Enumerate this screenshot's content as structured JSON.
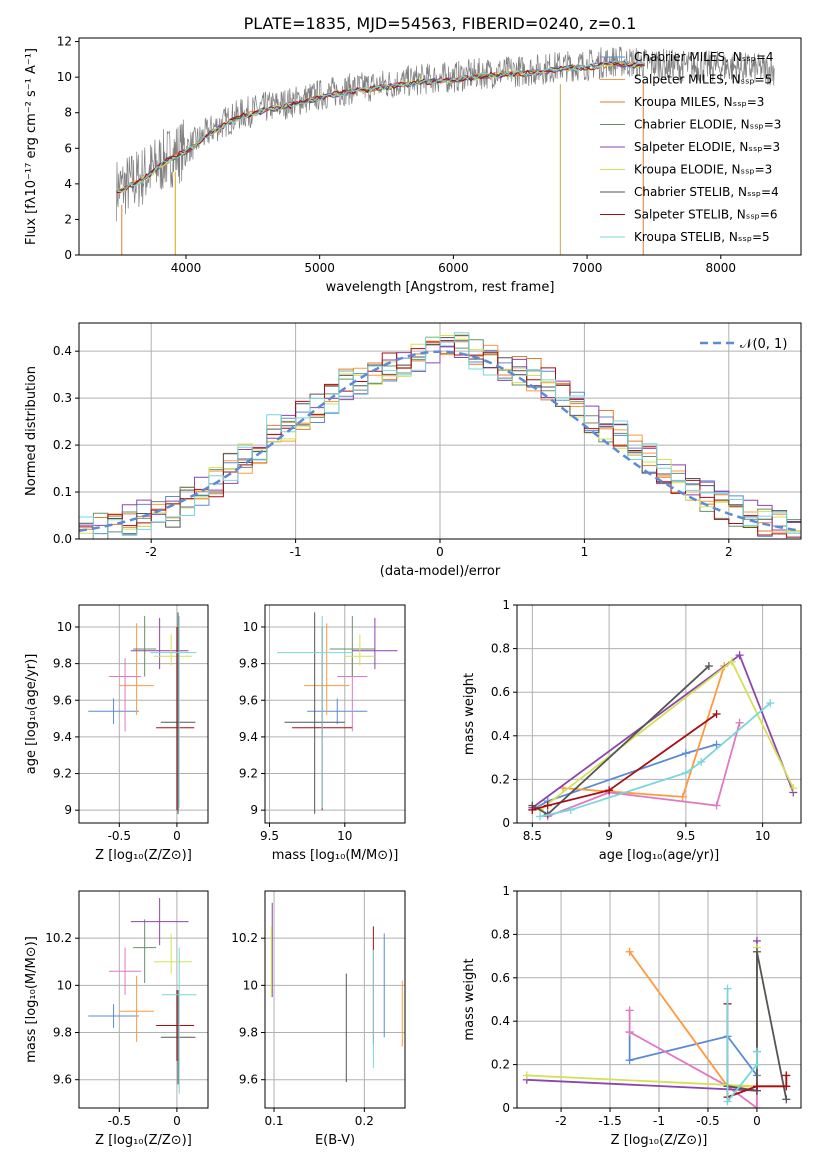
{
  "figure": {
    "title": "PLATE=1835, MJD=54563, FIBERID=0240, z=0.1"
  },
  "colors": {
    "run_colors": [
      "#5b8bd6",
      "#ff9a3c",
      "#e07e2c",
      "#6b8f6b",
      "#8e44ad",
      "#d4e157",
      "#555555",
      "#a50f15",
      "#78d6dc"
    ],
    "observed": "#7f7f7f",
    "pink": "#e377c2",
    "norm_curve": "#5b8bd6",
    "grid": "#b0b0b0"
  },
  "chart_data": [
    {
      "id": "spectrum",
      "type": "line",
      "title": "PLATE=1835, MJD=54563, FIBERID=0240, z=0.1",
      "xlabel": "wavelength [Angstrom, rest frame]",
      "ylabel": "Flux [fλ10⁻¹⁷ erg cm⁻² s⁻¹ A⁻¹]",
      "xlim": [
        3200,
        8600
      ],
      "ylim": [
        0,
        12.2
      ],
      "xticks": [
        4000,
        5000,
        6000,
        7000,
        8000
      ],
      "yticks": [
        0,
        2,
        4,
        6,
        8,
        10,
        12
      ],
      "grid": false,
      "legend_position": "upper right",
      "legend": [
        "Chabrier MILES, Nₛₛₚ=4",
        "Salpeter MILES, Nₛₛₚ=5",
        "Kroupa MILES, Nₛₛₚ=3",
        "Chabrier ELODIE, Nₛₛₚ=3",
        "Salpeter ELODIE, Nₛₛₚ=3",
        "Kroupa ELODIE, Nₛₛₚ=3",
        "Chabrier STELIB, Nₛₛₚ=4",
        "Salpeter STELIB, Nₛₛₚ=6",
        "Kroupa STELIB, Nₛₛₚ=5"
      ],
      "continuum": {
        "x": [
          3480,
          3550,
          3650,
          3750,
          3850,
          3950,
          4050,
          4200,
          4400,
          4600,
          4800,
          5000,
          5200,
          5400,
          5600,
          5800,
          6000,
          6200,
          6400,
          6600,
          6800,
          7000,
          7200,
          7400,
          7600,
          7800,
          8000,
          8200,
          8400
        ],
        "y": [
          3.7,
          3.9,
          4.3,
          4.8,
          5.4,
          5.8,
          6.2,
          7.1,
          7.9,
          8.3,
          8.6,
          9.0,
          9.3,
          9.5,
          9.7,
          9.9,
          10.0,
          10.2,
          10.3,
          10.4,
          10.6,
          10.7,
          10.9,
          10.8,
          10.7,
          10.6,
          10.6,
          10.5,
          10.4
        ]
      }
    },
    {
      "id": "residuals",
      "type": "histogram",
      "xlabel": "(data-model)/error",
      "ylabel": "Normed distribution",
      "xlim": [
        -2.5,
        2.5
      ],
      "ylim": [
        0,
        0.46
      ],
      "xticks": [
        -2,
        -1,
        0,
        1,
        2
      ],
      "yticks": [
        0.0,
        0.1,
        0.2,
        0.3,
        0.4
      ],
      "grid": true,
      "legend_position": "upper right",
      "legend": [
        "𝒩(0, 1)"
      ],
      "bins": [
        -2.5,
        -2.4,
        -2.3,
        -2.2,
        -2.1,
        -2.0,
        -1.9,
        -1.8,
        -1.7,
        -1.6,
        -1.5,
        -1.4,
        -1.3,
        -1.2,
        -1.1,
        -1.0,
        -0.9,
        -0.8,
        -0.7,
        -0.6,
        -0.5,
        -0.4,
        -0.3,
        -0.2,
        -0.1,
        0.0,
        0.1,
        0.2,
        0.3,
        0.4,
        0.5,
        0.6,
        0.7,
        0.8,
        0.9,
        1.0,
        1.1,
        1.2,
        1.3,
        1.4,
        1.5,
        1.6,
        1.7,
        1.8,
        1.9,
        2.0,
        2.1,
        2.2,
        2.3,
        2.4,
        2.5
      ],
      "base_heights": [
        0.02,
        0.02,
        0.03,
        0.04,
        0.05,
        0.06,
        0.06,
        0.08,
        0.1,
        0.12,
        0.15,
        0.17,
        0.19,
        0.24,
        0.23,
        0.26,
        0.28,
        0.3,
        0.33,
        0.34,
        0.36,
        0.37,
        0.38,
        0.39,
        0.4,
        0.4,
        0.41,
        0.39,
        0.38,
        0.37,
        0.36,
        0.35,
        0.33,
        0.31,
        0.28,
        0.26,
        0.24,
        0.22,
        0.19,
        0.17,
        0.14,
        0.13,
        0.11,
        0.09,
        0.07,
        0.06,
        0.05,
        0.04,
        0.03,
        0.02
      ]
    },
    {
      "id": "age_vs_Z",
      "type": "scatter",
      "xlabel": "Z [log₁₀(Z/Z⊙)]",
      "ylabel": "age  [log₁₀(age/yr)]",
      "xlim": [
        -0.85,
        0.27
      ],
      "ylim": [
        8.93,
        10.12
      ],
      "xticks": [
        -0.5,
        0.0
      ],
      "yticks": [
        9.0,
        9.2,
        9.4,
        9.6,
        9.8,
        10.0
      ],
      "grid": true,
      "points": [
        {
          "x": -0.55,
          "y": 9.54,
          "xerr": [
            0.22,
            0.22
          ],
          "yerr": [
            0.07,
            0.07
          ],
          "c": 0
        },
        {
          "x": -0.35,
          "y": 9.68,
          "xerr": [
            0.15,
            0.15
          ],
          "yerr": [
            0.16,
            0.34
          ],
          "c": 1
        },
        {
          "x": -0.45,
          "y": 9.73,
          "xerr": [
            0.14,
            0.14
          ],
          "yerr": [
            0.3,
            0.1
          ],
          "c": 9
        },
        {
          "x": -0.28,
          "y": 9.88,
          "xerr": [
            0.1,
            0.1
          ],
          "yerr": [
            0.15,
            0.18
          ],
          "c": 3
        },
        {
          "x": -0.15,
          "y": 9.87,
          "xerr": [
            0.25,
            0.25
          ],
          "yerr": [
            0.1,
            0.18
          ],
          "c": 4
        },
        {
          "x": -0.05,
          "y": 9.84,
          "xerr": [
            0.15,
            0.18
          ],
          "yerr": [
            0.05,
            0.12
          ],
          "c": 5
        },
        {
          "x": 0.01,
          "y": 9.48,
          "xerr": [
            0.15,
            0.15
          ],
          "yerr": [
            0.5,
            0.6
          ],
          "c": 6
        },
        {
          "x": 0.0,
          "y": 9.45,
          "xerr": [
            0.18,
            0.15
          ],
          "yerr": [
            0.45,
            0.55
          ],
          "c": 7
        },
        {
          "x": 0.02,
          "y": 9.86,
          "xerr": [
            0.25,
            0.15
          ],
          "yerr": [
            0.85,
            0.2
          ],
          "c": 8
        }
      ]
    },
    {
      "id": "age_vs_mass",
      "type": "scatter",
      "xlabel": "mass [log₁₀(M/M⊙)]",
      "ylabel": "",
      "xlim": [
        9.47,
        10.4
      ],
      "ylim": [
        8.93,
        10.12
      ],
      "xticks": [
        9.5,
        10.0
      ],
      "yticks": [
        9.0,
        9.2,
        9.4,
        9.6,
        9.8,
        10.0
      ],
      "grid": true,
      "points": [
        {
          "x": 9.95,
          "y": 9.54,
          "xerr": [
            0.2,
            0.2
          ],
          "yerr": [
            0.07,
            0.07
          ],
          "c": 0
        },
        {
          "x": 9.88,
          "y": 9.68,
          "xerr": [
            0.15,
            0.15
          ],
          "yerr": [
            0.16,
            0.34
          ],
          "c": 1
        },
        {
          "x": 10.05,
          "y": 9.73,
          "xerr": [
            0.1,
            0.1
          ],
          "yerr": [
            0.3,
            0.1
          ],
          "c": 9
        },
        {
          "x": 10.05,
          "y": 9.88,
          "xerr": [
            0.15,
            0.15
          ],
          "yerr": [
            0.15,
            0.18
          ],
          "c": 3
        },
        {
          "x": 10.2,
          "y": 9.87,
          "xerr": [
            0.15,
            0.15
          ],
          "yerr": [
            0.1,
            0.18
          ],
          "c": 4
        },
        {
          "x": 10.1,
          "y": 9.84,
          "xerr": [
            0.1,
            0.1
          ],
          "yerr": [
            0.05,
            0.12
          ],
          "c": 5
        },
        {
          "x": 9.8,
          "y": 9.48,
          "xerr": [
            0.2,
            0.2
          ],
          "yerr": [
            0.5,
            0.6
          ],
          "c": 6
        },
        {
          "x": 9.85,
          "y": 9.45,
          "xerr": [
            0.2,
            0.2
          ],
          "yerr": [
            0.45,
            0.55
          ],
          "c": 7
        },
        {
          "x": 9.85,
          "y": 9.86,
          "xerr": [
            0.3,
            0.2
          ],
          "yerr": [
            0.85,
            0.2
          ],
          "c": 8
        }
      ]
    },
    {
      "id": "weight_vs_age",
      "type": "line",
      "xlabel": "age  [log₁₀(age/yr)]",
      "ylabel": "mass weight",
      "xlim": [
        8.4,
        10.25
      ],
      "ylim": [
        0,
        1.0
      ],
      "xticks": [
        8.5,
        9.0,
        9.5,
        10.0
      ],
      "yticks": [
        0.0,
        0.2,
        0.4,
        0.6,
        0.8,
        1.0
      ],
      "grid": true,
      "series": [
        {
          "c": 0,
          "x": [
            8.5,
            8.6,
            9.5,
            9.7
          ],
          "y": [
            0.06,
            0.1,
            0.32,
            0.36
          ]
        },
        {
          "c": 1,
          "x": [
            8.7,
            9.48,
            9.75
          ],
          "y": [
            0.16,
            0.12,
            0.72
          ]
        },
        {
          "c": 9,
          "x": [
            8.6,
            9.0,
            9.7,
            9.85
          ],
          "y": [
            0.03,
            0.14,
            0.08,
            0.46
          ]
        },
        {
          "c": 4,
          "x": [
            8.5,
            9.85,
            10.2
          ],
          "y": [
            0.07,
            0.77,
            0.14
          ]
        },
        {
          "c": 5,
          "x": [
            8.55,
            9.8,
            10.2
          ],
          "y": [
            0.06,
            0.74,
            0.16
          ]
        },
        {
          "c": 6,
          "x": [
            8.5,
            8.6,
            9.65
          ],
          "y": [
            0.08,
            0.04,
            0.72
          ]
        },
        {
          "c": 7,
          "x": [
            8.5,
            8.6,
            9.0,
            9.7
          ],
          "y": [
            0.06,
            0.08,
            0.15,
            0.5
          ]
        },
        {
          "c": 8,
          "x": [
            8.55,
            8.75,
            9.5,
            9.6,
            10.05
          ],
          "y": [
            0.03,
            0.06,
            0.23,
            0.28,
            0.55
          ]
        }
      ]
    },
    {
      "id": "mass_vs_Z",
      "type": "scatter",
      "xlabel": "Z [log₁₀(Z/Z⊙)]",
      "ylabel": "mass [log₁₀(M/M⊙)]",
      "xlim": [
        -0.85,
        0.27
      ],
      "ylim": [
        9.48,
        10.4
      ],
      "xticks": [
        -0.5,
        0.0
      ],
      "yticks": [
        9.6,
        9.8,
        10.0,
        10.2
      ],
      "grid": true,
      "points": [
        {
          "x": -0.55,
          "y": 9.87,
          "xerr": [
            0.22,
            0.22
          ],
          "yerr": [
            0.05,
            0.05
          ],
          "c": 0
        },
        {
          "x": -0.35,
          "y": 9.89,
          "xerr": [
            0.15,
            0.15
          ],
          "yerr": [
            0.13,
            0.15
          ],
          "c": 1
        },
        {
          "x": -0.45,
          "y": 10.06,
          "xerr": [
            0.14,
            0.14
          ],
          "yerr": [
            0.1,
            0.1
          ],
          "c": 9
        },
        {
          "x": -0.28,
          "y": 10.16,
          "xerr": [
            0.1,
            0.1
          ],
          "yerr": [
            0.15,
            0.12
          ],
          "c": 3
        },
        {
          "x": -0.15,
          "y": 10.27,
          "xerr": [
            0.25,
            0.25
          ],
          "yerr": [
            0.1,
            0.1
          ],
          "c": 4
        },
        {
          "x": -0.05,
          "y": 10.1,
          "xerr": [
            0.15,
            0.18
          ],
          "yerr": [
            0.05,
            0.12
          ],
          "c": 5
        },
        {
          "x": 0.01,
          "y": 9.78,
          "xerr": [
            0.15,
            0.15
          ],
          "yerr": [
            0.2,
            0.2
          ],
          "c": 6
        },
        {
          "x": 0.0,
          "y": 9.83,
          "xerr": [
            0.18,
            0.15
          ],
          "yerr": [
            0.15,
            0.15
          ],
          "c": 7
        },
        {
          "x": 0.02,
          "y": 9.96,
          "xerr": [
            0.15,
            0.15
          ],
          "yerr": [
            0.42,
            0.2
          ],
          "c": 8
        }
      ]
    },
    {
      "id": "mass_vs_EBV",
      "type": "scatter",
      "xlabel": "E(B-V)",
      "ylabel": "",
      "xlim": [
        0.09,
        0.245
      ],
      "ylim": [
        9.48,
        10.4
      ],
      "xticks": [
        0.1,
        0.2
      ],
      "yticks": [
        9.6,
        9.8,
        10.0,
        10.2
      ],
      "grid": true,
      "points": [
        {
          "x": 0.098,
          "y": 10.15,
          "xerr": [
            0,
            0
          ],
          "yerr": [
            0.2,
            0.2
          ],
          "c": 4
        },
        {
          "x": 0.097,
          "y": 10.1,
          "xerr": [
            0,
            0
          ],
          "yerr": [
            0.15,
            0.15
          ],
          "c": 5
        },
        {
          "x": 0.18,
          "y": 9.82,
          "xerr": [
            0,
            0
          ],
          "yerr": [
            0.23,
            0.23
          ],
          "c": 6
        },
        {
          "x": 0.21,
          "y": 10.0,
          "xerr": [
            0,
            0
          ],
          "yerr": [
            0.25,
            0.25
          ],
          "c": 7
        },
        {
          "x": 0.21,
          "y": 9.9,
          "xerr": [
            0,
            0
          ],
          "yerr": [
            0.25,
            0.25
          ],
          "c": 8
        },
        {
          "x": 0.222,
          "y": 10.0,
          "xerr": [
            0,
            0
          ],
          "yerr": [
            0.22,
            0.22
          ],
          "c": 0
        },
        {
          "x": 0.242,
          "y": 9.88,
          "xerr": [
            0,
            0
          ],
          "yerr": [
            0.14,
            0.14
          ],
          "c": 1
        }
      ]
    },
    {
      "id": "weight_vs_Z",
      "type": "line",
      "xlabel": "Z [log₁₀(Z/Z⊙)]",
      "ylabel": "mass weight",
      "xlim": [
        -2.45,
        0.45
      ],
      "ylim": [
        0,
        1.0
      ],
      "xticks": [
        -2.0,
        -1.5,
        -1.0,
        -0.5,
        0.0
      ],
      "yticks": [
        0.0,
        0.2,
        0.4,
        0.6,
        0.8,
        1.0
      ],
      "grid": true,
      "series": [
        {
          "c": 0,
          "x": [
            -1.3,
            -1.3,
            -0.3,
            0.0,
            0.0
          ],
          "y": [
            0.35,
            0.22,
            0.33,
            0.15,
            0.26
          ]
        },
        {
          "c": 1,
          "x": [
            -1.3,
            -0.3,
            0.3,
            0.3
          ],
          "y": [
            0.72,
            0.1,
            0.1,
            0.15
          ]
        },
        {
          "c": 9,
          "x": [
            -1.3,
            -1.3,
            -0.3,
            0.0,
            0.0
          ],
          "y": [
            0.45,
            0.35,
            0.1,
            0.0,
            0.1
          ]
        },
        {
          "c": 4,
          "x": [
            -2.35,
            0.0,
            0.0,
            0.0
          ],
          "y": [
            0.13,
            0.08,
            0.77,
            0.1
          ]
        },
        {
          "c": 5,
          "x": [
            -2.35,
            0.0,
            0.0
          ],
          "y": [
            0.15,
            0.1,
            0.74
          ]
        },
        {
          "c": 6,
          "x": [
            -0.3,
            0.0,
            0.0,
            0.3
          ],
          "y": [
            0.1,
            0.08,
            0.72,
            0.04
          ]
        },
        {
          "c": 7,
          "x": [
            -0.3,
            -0.3,
            0.0,
            0.3,
            0.3
          ],
          "y": [
            0.48,
            0.05,
            0.1,
            0.1,
            0.15
          ]
        },
        {
          "c": 8,
          "x": [
            -0.3,
            -0.3,
            0.0,
            0.0
          ],
          "y": [
            0.55,
            0.03,
            0.2,
            0.26
          ]
        }
      ]
    }
  ]
}
